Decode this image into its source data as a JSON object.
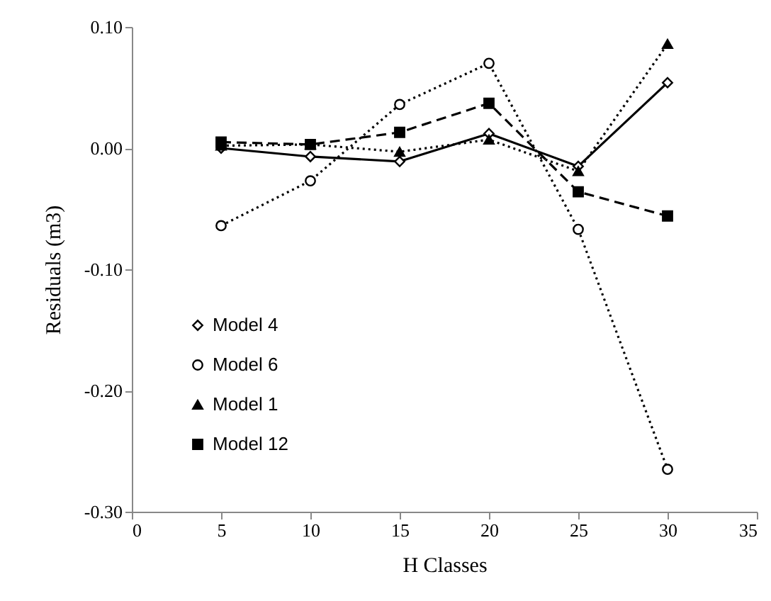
{
  "chart_data": {
    "type": "line",
    "xlabel": "H Classes",
    "ylabel": "Residuals (m3)",
    "x": [
      5,
      10,
      15,
      20,
      25,
      30
    ],
    "series": [
      {
        "name": "Model 4",
        "color": "#000000",
        "marker": "diamond",
        "line_style": "solid",
        "values": [
          0.0,
          -0.007,
          -0.011,
          0.012,
          -0.015,
          0.054
        ]
      },
      {
        "name": "Model 6",
        "color": "#000000",
        "marker": "circle",
        "line_style": "dotted",
        "values": [
          -0.064,
          -0.027,
          0.036,
          0.07,
          -0.067,
          -0.265
        ]
      },
      {
        "name": "Model 1",
        "color": "#000000",
        "marker": "triangle",
        "line_style": "dotted",
        "values": [
          0.002,
          0.003,
          -0.003,
          0.007,
          -0.019,
          0.086
        ]
      },
      {
        "name": "Model 12",
        "color": "#000000",
        "marker": "square",
        "line_style": "dashed",
        "values": [
          0.005,
          0.003,
          0.013,
          0.037,
          -0.036,
          -0.056
        ]
      }
    ],
    "xlim": [
      0,
      35
    ],
    "xticks": [
      0,
      5,
      10,
      15,
      20,
      25,
      30,
      35
    ],
    "ylim": [
      -0.3,
      0.1
    ],
    "yticks": [
      {
        "value": -0.3,
        "label": "-0.30"
      },
      {
        "value": -0.2,
        "label": "-0.20"
      },
      {
        "value": -0.1,
        "label": "-0.10"
      },
      {
        "value": 0,
        "label": "0.00"
      },
      {
        "value": 0.1,
        "label": "0.10"
      }
    ],
    "grid": false,
    "legend": "bottom left"
  }
}
